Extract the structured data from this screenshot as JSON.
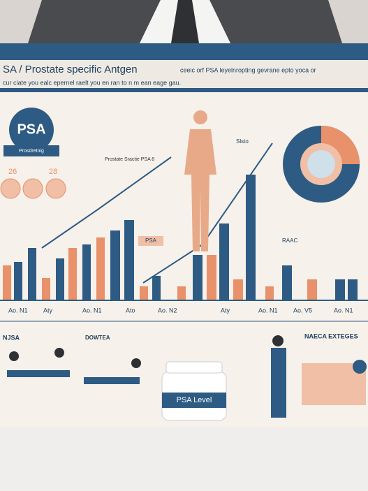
{
  "header": {
    "title": "SA / Prostate specific Antgen",
    "subtitle": "ceeic orf PSA leyelnropting gevrane epto yoca or",
    "tagline": "cur ciate you ealc epernel raelt you en ran to n m ean eage gau."
  },
  "badge": {
    "label": "PSA",
    "ribbon": "Prosdretnig"
  },
  "side_numbers": [
    "26",
    "28"
  ],
  "chart": {
    "x_labels": [
      "Ao. N1",
      "Aty",
      "Ao. N1",
      "Ato",
      "Ao. N2",
      "Aty",
      "Ao. N1",
      "Ao. V5",
      "Ao. N1"
    ],
    "callouts": [
      "Prostate Sractie PSA 8",
      "PSA",
      "Slsto",
      "RAAC"
    ]
  },
  "bottom": {
    "left_title": "NJSA",
    "middle_title": "DOWTEA",
    "jar_label": "PSA Level",
    "right_title": "NAECA EXTEGES"
  }
}
